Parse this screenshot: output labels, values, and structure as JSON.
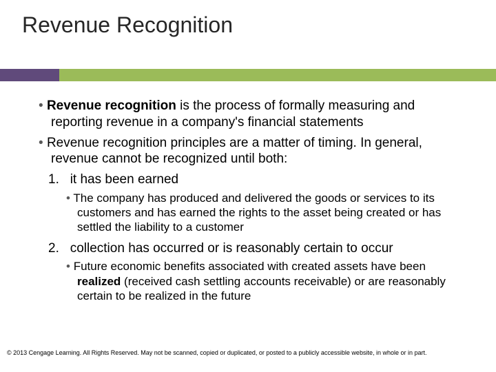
{
  "title": "Revenue Recognition",
  "accent": {
    "left_color": "#604a7b",
    "right_color": "#9bbb59"
  },
  "bullets": {
    "b1_lead": "Revenue recognition",
    "b1_rest": " is the process of formally measuring and reporting revenue in a company's financial statements",
    "b2": "Revenue recognition principles are a matter of timing. In general, revenue cannot be recognized until both:",
    "n1_num": "1.",
    "n1_text": "it has been earned",
    "sub1": "The company has produced and delivered the goods or services to its customers and has earned the rights to the asset being created or has settled the liability to a customer",
    "n2_num": "2.",
    "n2_text": "collection has occurred or is reasonably certain to occur",
    "sub2_a": "Future economic benefits associated with created assets have been ",
    "sub2_bold": "realized",
    "sub2_b": " (received cash settling accounts receivable) or are reasonably certain to be realized in the future"
  },
  "copyright": "© 2013 Cengage Learning. All Rights Reserved. May not be scanned, copied or duplicated, or posted to a publicly accessible website, in whole or in part.",
  "typography": {
    "title_size": 32,
    "body_size": 19,
    "sub_size": 17,
    "copyright_size": 9,
    "bullet_color": "#595959",
    "title_color": "#262626"
  }
}
